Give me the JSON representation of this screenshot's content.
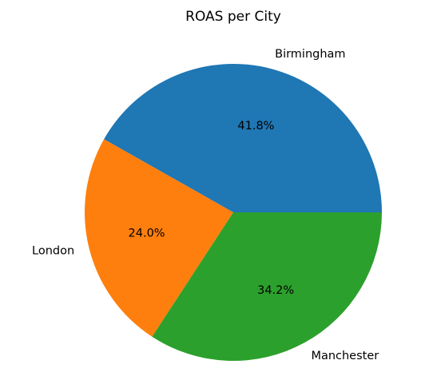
{
  "chart_data": {
    "type": "pie",
    "title": "ROAS per City",
    "categories": [
      "Birmingham",
      "London",
      "Manchester"
    ],
    "values": [
      41.8,
      24.0,
      34.2
    ],
    "value_labels": [
      "41.8%",
      "24.0%",
      "34.2%"
    ],
    "colors": [
      "#1f77b4",
      "#ff7f0e",
      "#2ca02c"
    ],
    "start_angle_deg": 0,
    "direction": "counterclockwise",
    "legend": "none"
  }
}
